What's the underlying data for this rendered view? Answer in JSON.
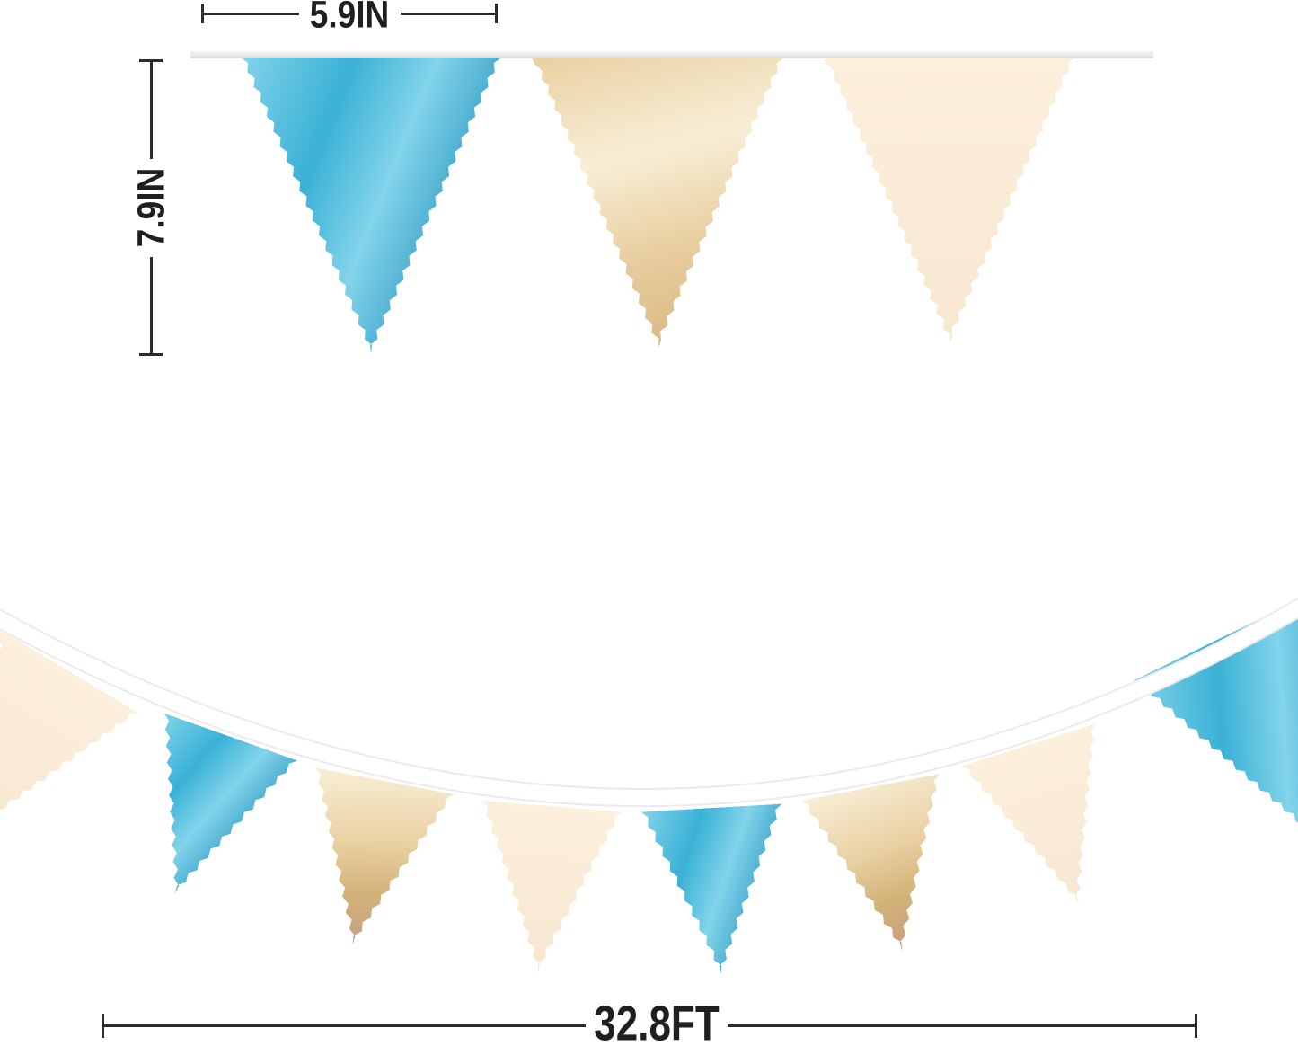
{
  "annotations": {
    "flag_width_label": "5.9IN",
    "flag_height_label": "7.9IN",
    "banner_length_label": "32.8FT"
  },
  "top_banner": {
    "flag_colors": [
      "blue",
      "gold",
      "cream"
    ]
  },
  "bottom_banner": {
    "flag_colors": [
      "cream",
      "blue",
      "gold",
      "cream",
      "blue",
      "gold",
      "cream",
      "blue"
    ]
  },
  "palette": {
    "blue": {
      "base": "#3ab1d6",
      "light": "#82d4ea",
      "dark": "#2894c0"
    },
    "gold": {
      "base": "#e9d0a2",
      "light": "#f8eed6",
      "dark": "#d3b278",
      "rose": "#c59b88"
    },
    "cream": {
      "base": "#fcefdc",
      "dark": "#f7e7d1"
    },
    "ribbon": "#e9e9e9",
    "string": "#ffffff",
    "string_edge": "#ebebeb",
    "dimension_line": "#2b2b2b",
    "dimension_text": "#1f1f1f"
  }
}
